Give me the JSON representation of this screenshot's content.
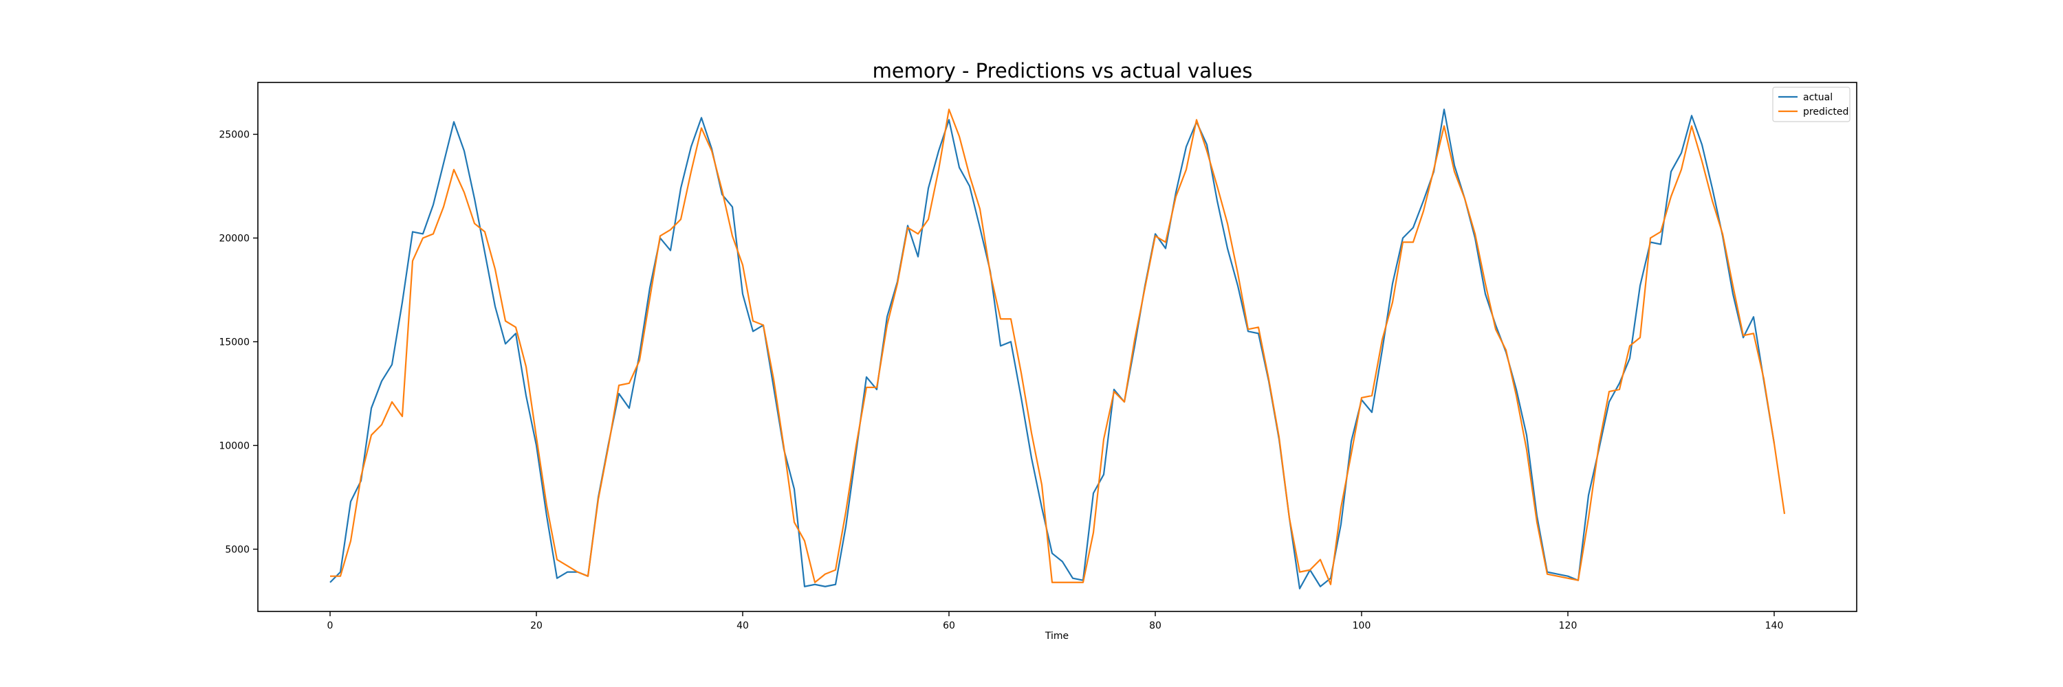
{
  "chart_data": {
    "type": "line",
    "title": "memory - Predictions vs actual values",
    "xlabel": "Time",
    "ylabel": "",
    "xlim": [
      -7,
      148
    ],
    "ylim": [
      2000,
      27500
    ],
    "xticks": [
      0,
      20,
      40,
      60,
      80,
      100,
      120,
      140
    ],
    "yticks": [
      5000,
      10000,
      15000,
      20000,
      25000
    ],
    "grid": false,
    "legend": "top-right",
    "series": [
      {
        "name": "actual",
        "color": "#1f77b4",
        "x": [
          0,
          1,
          2,
          3,
          4,
          5,
          6,
          7,
          8,
          9,
          10,
          11,
          12,
          13,
          14,
          15,
          16,
          17,
          18,
          19,
          20,
          21,
          22,
          23,
          24,
          25,
          26,
          27,
          28,
          29,
          30,
          31,
          32,
          33,
          34,
          35,
          36,
          37,
          38,
          39,
          40,
          41,
          42,
          43,
          44,
          45,
          46,
          47,
          48,
          49,
          50,
          51,
          52,
          53,
          54,
          55,
          56,
          57,
          58,
          59,
          60,
          61,
          62,
          63,
          64,
          65,
          66,
          67,
          68,
          69,
          70,
          71,
          72,
          73,
          74,
          75,
          76,
          77,
          78,
          79,
          80,
          81,
          82,
          83,
          84,
          85,
          86,
          87,
          88,
          89,
          90,
          91,
          92,
          93,
          94,
          95,
          96,
          97,
          98,
          99,
          100,
          101,
          102,
          103,
          104,
          105,
          106,
          107,
          108,
          109,
          110,
          111,
          112,
          113,
          114,
          115,
          116,
          117,
          118,
          119,
          120,
          121,
          122,
          123,
          124,
          125,
          126,
          127,
          128,
          129,
          130,
          131,
          132,
          133,
          134,
          135,
          136,
          137,
          138,
          139,
          140
        ],
        "values": [
          3400,
          3900,
          7300,
          8300,
          11800,
          13100,
          13900,
          16900,
          20300,
          20200,
          21600,
          23600,
          25600,
          24200,
          21900,
          19300,
          16700,
          14900,
          15400,
          12400,
          10000,
          6600,
          3600,
          3900,
          3900,
          3700,
          7500,
          10100,
          12500,
          11800,
          14400,
          17600,
          20000,
          19400,
          22400,
          24400,
          25800,
          24300,
          22100,
          21500,
          17300,
          15500,
          15800,
          12800,
          9800,
          7900,
          3200,
          3300,
          3200,
          3300,
          6100,
          9700,
          13300,
          12700,
          16200,
          17900,
          20600,
          19100,
          22400,
          24200,
          25700,
          23400,
          22500,
          20500,
          18400,
          14800,
          15000,
          12300,
          9400,
          7000,
          4800,
          4400,
          3600,
          3500,
          7700,
          8600,
          12700,
          12100,
          14800,
          17700,
          20200,
          19500,
          22200,
          24400,
          25600,
          24500,
          21800,
          19500,
          17700,
          15500,
          15400,
          13100,
          10300,
          6500,
          3100,
          4000,
          3200,
          3600,
          6200,
          10200,
          12200,
          11600,
          14600,
          17800,
          20000,
          20500,
          21800,
          23200,
          26200,
          23500,
          21900,
          20000,
          17300,
          15800,
          14500,
          12700,
          10500,
          6600,
          3900,
          3800,
          3700,
          3500,
          7600,
          9800,
          12100,
          13000,
          14200,
          17700,
          19800,
          19700,
          23200,
          24100,
          25900,
          24500,
          22400,
          20100,
          17300,
          15200,
          16200,
          13100,
          10100
        ]
      },
      {
        "name": "predicted",
        "color": "#ff7f0e",
        "x": [
          0,
          1,
          2,
          3,
          4,
          5,
          6,
          7,
          8,
          9,
          10,
          11,
          12,
          13,
          14,
          15,
          16,
          17,
          18,
          19,
          20,
          21,
          22,
          23,
          24,
          25,
          26,
          27,
          28,
          29,
          30,
          31,
          32,
          33,
          34,
          35,
          36,
          37,
          38,
          39,
          40,
          41,
          42,
          43,
          44,
          45,
          46,
          47,
          48,
          49,
          50,
          51,
          52,
          53,
          54,
          55,
          56,
          57,
          58,
          59,
          60,
          61,
          62,
          63,
          64,
          65,
          66,
          67,
          68,
          69,
          70,
          71,
          72,
          73,
          74,
          75,
          76,
          77,
          78,
          79,
          80,
          81,
          82,
          83,
          84,
          85,
          86,
          87,
          88,
          89,
          90,
          91,
          92,
          93,
          94,
          95,
          96,
          97,
          98,
          99,
          100,
          101,
          102,
          103,
          104,
          105,
          106,
          107,
          108,
          109,
          110,
          111,
          112,
          113,
          114,
          115,
          116,
          117,
          118,
          119,
          120,
          121,
          122,
          123,
          124,
          125,
          126,
          127,
          128,
          129,
          130,
          131,
          132,
          133,
          134,
          135,
          136,
          137,
          138,
          139,
          140,
          141
        ],
        "values": [
          3700,
          3700,
          5400,
          8500,
          10500,
          11000,
          12100,
          11400,
          18900,
          20000,
          20200,
          21500,
          23300,
          22200,
          20700,
          20300,
          18500,
          16000,
          15700,
          13800,
          10400,
          7100,
          4500,
          4200,
          3900,
          3700,
          7400,
          10000,
          12900,
          13000,
          14100,
          17100,
          20100,
          20400,
          20900,
          23200,
          25300,
          24200,
          22300,
          20100,
          18700,
          16000,
          15800,
          13200,
          9900,
          6300,
          5400,
          3400,
          3800,
          4000,
          6800,
          10000,
          12800,
          12800,
          15800,
          17800,
          20500,
          20200,
          20900,
          23300,
          26200,
          24900,
          23000,
          21400,
          18300,
          16100,
          16100,
          13500,
          10600,
          8100,
          3400,
          3400,
          3400,
          3400,
          5800,
          10300,
          12600,
          12100,
          15100,
          17600,
          20100,
          19800,
          22000,
          23300,
          25700,
          24200,
          22500,
          20700,
          18300,
          15600,
          15700,
          13200,
          10400,
          6500,
          3900,
          4000,
          4500,
          3300,
          7000,
          9600,
          12300,
          12400,
          15100,
          16900,
          19800,
          19800,
          21300,
          23300,
          25400,
          23200,
          21900,
          20200,
          17800,
          15600,
          14600,
          12400,
          9800,
          6300,
          3800,
          3700,
          3600,
          3500,
          6500,
          10000,
          12600,
          12700,
          14800,
          15200,
          20000,
          20300,
          22000,
          23300,
          25400,
          23700,
          21800,
          20200,
          17700,
          15300,
          15400,
          13200,
          10100,
          6700
        ]
      }
    ]
  }
}
